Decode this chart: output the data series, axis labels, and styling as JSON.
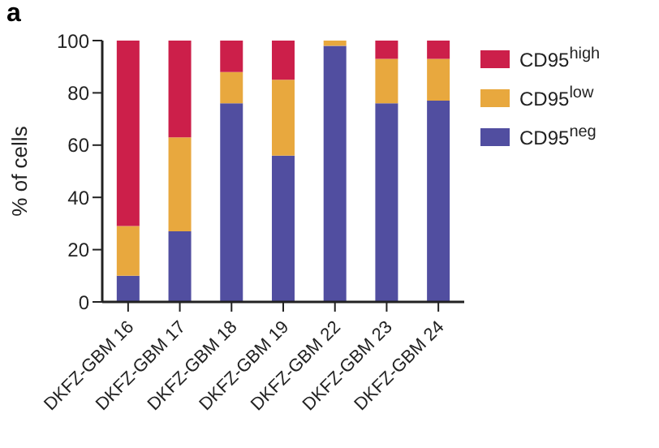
{
  "chart_data": {
    "type": "bar",
    "title": "a",
    "ylabel": "% of cells",
    "stacked": true,
    "legend": "right",
    "grid": false,
    "categories": [
      "DKFZ-GBM 16",
      "DKFZ-GBM 17",
      "DKFZ-GBM 18",
      "DKFZ-GBM 19",
      "DKFZ-GBM 22",
      "DKFZ-GBM 23",
      "DKFZ-GBM 24"
    ],
    "series": [
      {
        "name": "CD95$^{neg}$",
        "color": "#514ea0",
        "values": [
          10,
          27,
          76,
          56,
          98,
          76,
          77
        ]
      },
      {
        "name": "CD95$^{low}$",
        "color": "#e8a83e",
        "values": [
          19,
          36,
          12,
          29,
          2,
          17,
          16
        ]
      },
      {
        "name": "CD95$^{high}$",
        "color": "#cc1f4a",
        "values": [
          71,
          37,
          12,
          15,
          0,
          7,
          7
        ]
      }
    ],
    "ylim": [
      0,
      100
    ],
    "yticks": [
      0,
      20,
      40,
      60,
      80,
      100
    ]
  }
}
